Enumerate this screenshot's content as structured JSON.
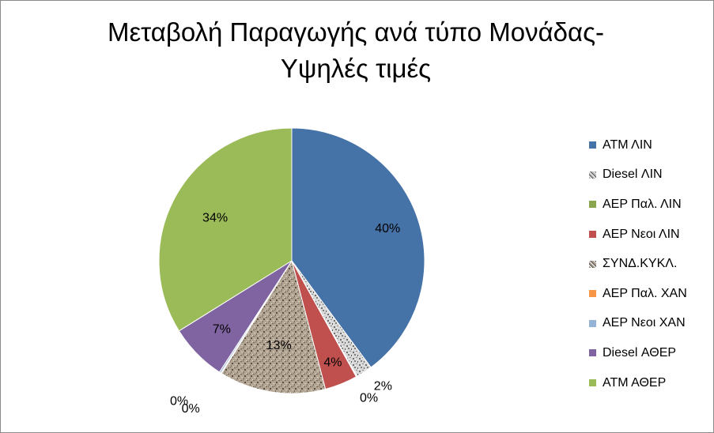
{
  "chart_data": {
    "type": "pie",
    "title": "Μεταβολή Παραγωγής ανά τύπο Μονάδας-Υψηλές τιμές",
    "title_lines": [
      "Μεταβολή Παραγωγής ανά τύπο Μονάδας-",
      "Υψηλές τιμές"
    ],
    "legend_position": "right",
    "slices": [
      {
        "label": "ΑΤΜ ΛΙΝ",
        "value": 40,
        "display": "40%",
        "color": "#4572A7",
        "pattern": "solid"
      },
      {
        "label": "Diesel ΛΙΝ",
        "value": 2,
        "display": "2%",
        "color": "#B8B8B8",
        "pattern": "granite"
      },
      {
        "label": "ΑΕΡ Παλ. ΛΙΝ",
        "value": 0.1,
        "display": "0%",
        "color": "#89A54E",
        "pattern": "solid"
      },
      {
        "label": "ΑΕΡ Νεοι ΛΙΝ",
        "value": 4,
        "display": "4%",
        "color": "#C0504D",
        "pattern": "solid"
      },
      {
        "label": "ΣΥΝΔ.ΚΥΚΛ.",
        "value": 13,
        "display": "13%",
        "color": "#A89A88",
        "pattern": "granite"
      },
      {
        "label": "ΑΕΡ Παλ. ΧΑΝ",
        "value": 0.1,
        "display": "0%",
        "color": "#F79646",
        "pattern": "solid"
      },
      {
        "label": "ΑΕΡ Νεοι ΧΑΝ",
        "value": 0.2,
        "display": "0%",
        "color": "#95B3D7",
        "pattern": "solid"
      },
      {
        "label": "Diesel ΑΘΕΡ",
        "value": 7,
        "display": "7%",
        "color": "#8064A2",
        "pattern": "solid"
      },
      {
        "label": "ΑΤΜ ΑΘΕΡ",
        "value": 34,
        "display": "34%",
        "color": "#9BBB59",
        "pattern": "solid"
      }
    ]
  }
}
